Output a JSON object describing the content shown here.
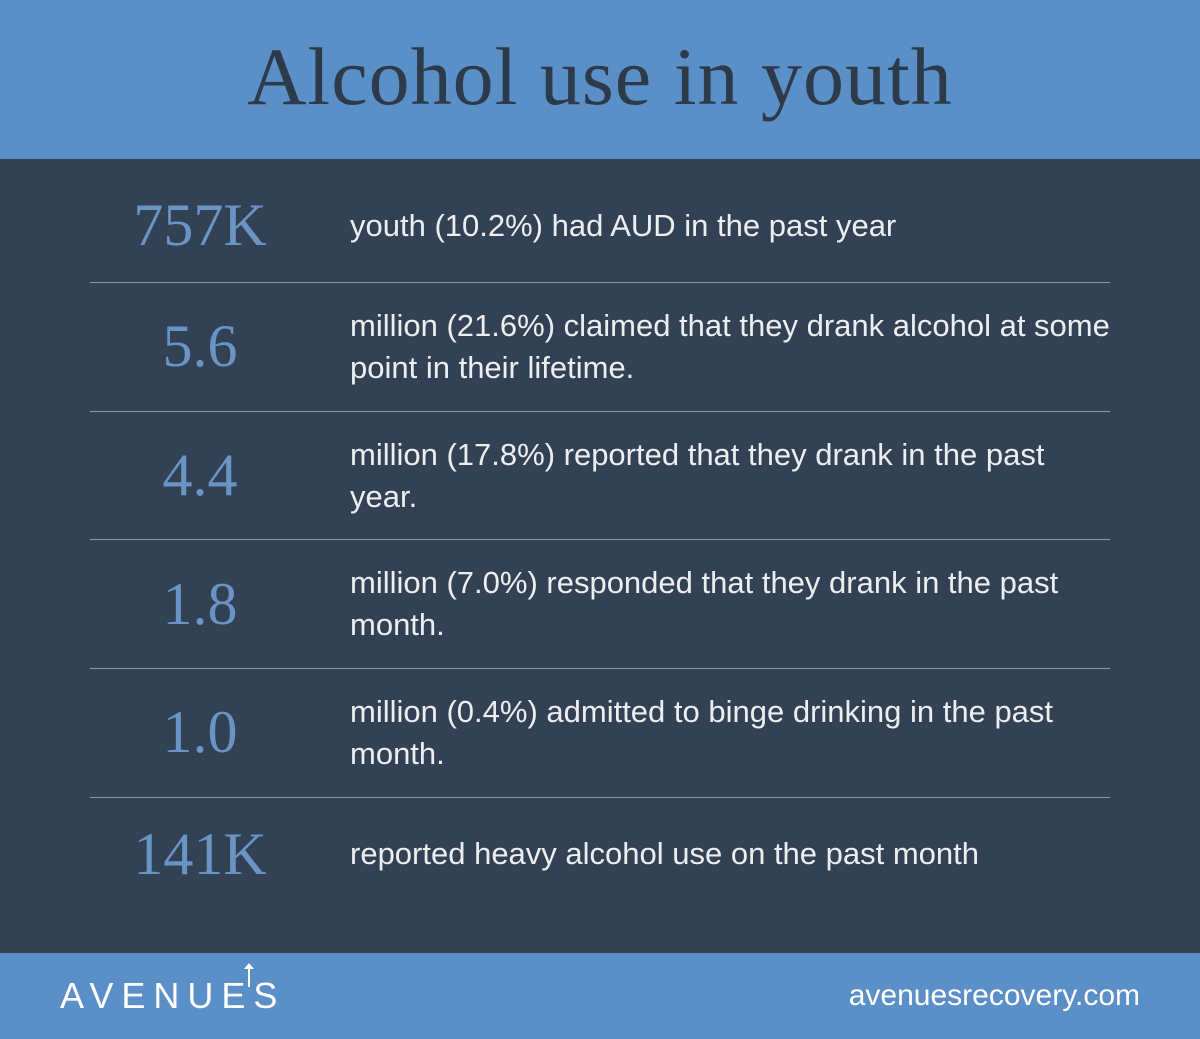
{
  "colors": {
    "header_bg": "#5a8fc8",
    "header_text": "#2d3a4a",
    "content_bg": "#334155",
    "stat_value_color": "#6994c4",
    "stat_desc_color": "#eceef0",
    "divider_color": "#8a98aa",
    "footer_bg": "#5a8fc8",
    "footer_text": "#ffffff"
  },
  "header": {
    "title": "Alcohol use in youth"
  },
  "stats": [
    {
      "value": "757K",
      "description": "youth (10.2%) had AUD in the past year"
    },
    {
      "value": "5.6",
      "description": "million (21.6%) claimed that they drank alcohol at some point in their lifetime."
    },
    {
      "value": "4.4",
      "description": "million (17.8%) reported that they drank in the past year."
    },
    {
      "value": "1.8",
      "description": "million (7.0%) responded that they drank in the past month."
    },
    {
      "value": "1.0",
      "description": "million (0.4%) admitted to binge drinking in the past month."
    },
    {
      "value": "141K",
      "description": "reported heavy alcohol use on the past month"
    }
  ],
  "footer": {
    "logo": "AVENUES",
    "website": "avenuesrecovery.com"
  },
  "typography": {
    "title_fontsize": 82,
    "stat_value_fontsize": 60,
    "stat_desc_fontsize": 31,
    "logo_fontsize": 36,
    "website_fontsize": 30
  }
}
